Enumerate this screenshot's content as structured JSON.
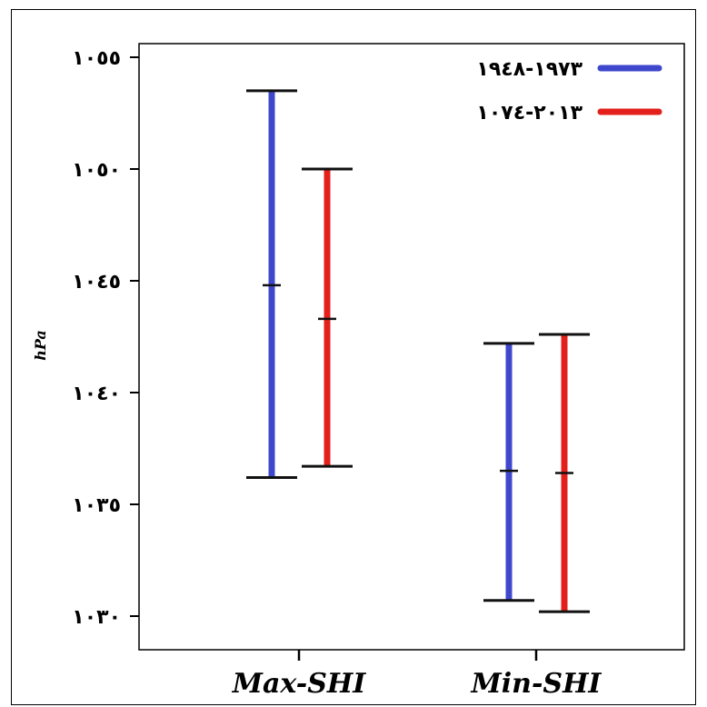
{
  "chart_data": {
    "type": "range",
    "title": "",
    "xlabel": "",
    "ylabel": "hPa",
    "ylim": [
      1027,
      1054
    ],
    "y_ticks": [
      {
        "value": 1030,
        "label": "١٠٣٠"
      },
      {
        "value": 1035,
        "label": "١٠٣٥"
      },
      {
        "value": 1040,
        "label": "١٠٤٠"
      },
      {
        "value": 1045,
        "label": "١٠٤٥"
      },
      {
        "value": 1050,
        "label": "١٠٥٠"
      },
      {
        "value": 1055,
        "label": "١٠٥٥"
      }
    ],
    "categories": [
      "Max-SHI",
      "Min-SHI"
    ],
    "series": [
      {
        "name": "١٩٧٣-١٩٤٨",
        "color": "#3f48cc",
        "values": [
          {
            "category": "Max-SHI",
            "min": 1036.2,
            "mid": 1044.8,
            "max": 1053.5
          },
          {
            "category": "Min-SHI",
            "min": 1030.7,
            "mid": 1036.5,
            "max": 1042.2
          }
        ]
      },
      {
        "name": "٢٠١٣-١٠٧٤",
        "color": "#e3201b",
        "values": [
          {
            "category": "Max-SHI",
            "min": 1036.7,
            "mid": 1043.3,
            "max": 1050.0
          },
          {
            "category": "Min-SHI",
            "min": 1030.2,
            "mid": 1036.4,
            "max": 1042.6
          }
        ]
      }
    ],
    "legend_position": "top-right",
    "grid": false
  }
}
